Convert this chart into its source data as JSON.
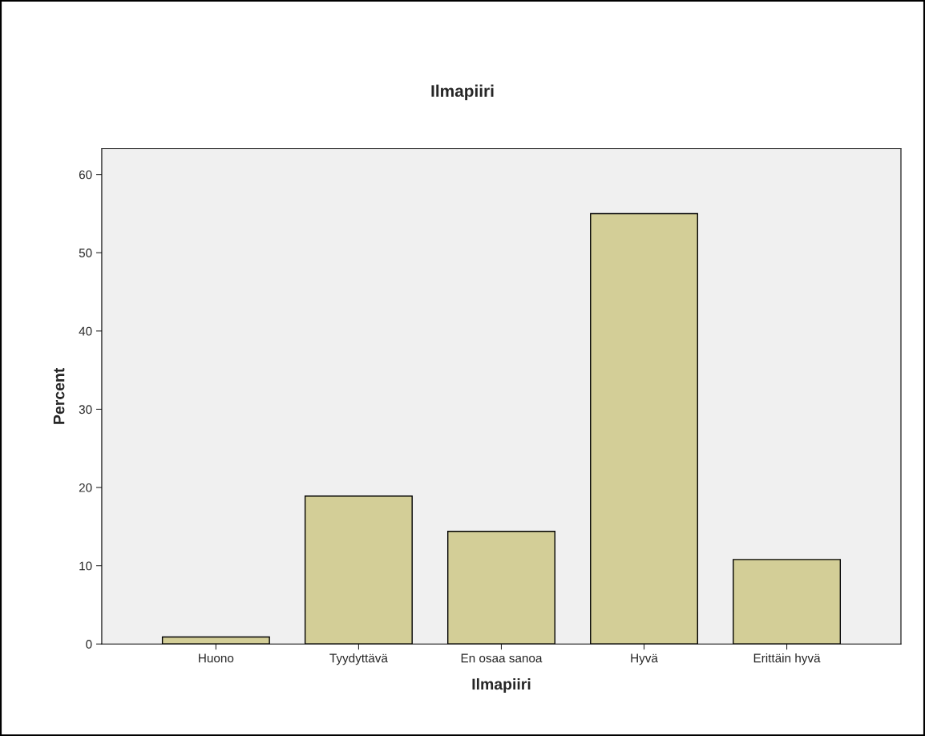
{
  "chart_data": {
    "type": "bar",
    "title": "Ilmapiiri",
    "xlabel": "Ilmapiiri",
    "ylabel": "Percent",
    "categories": [
      "Huono",
      "Tyydyttävä",
      "En osaa sanoa",
      "Hyvä",
      "Erittäin hyvä"
    ],
    "values": [
      0.9,
      18.9,
      14.4,
      55.0,
      10.8
    ],
    "color": "#d3ce97",
    "ylim": [
      0,
      63.3
    ],
    "yticks": [
      0,
      10,
      20,
      30,
      40,
      50,
      60
    ],
    "grid": false,
    "legend": false
  }
}
